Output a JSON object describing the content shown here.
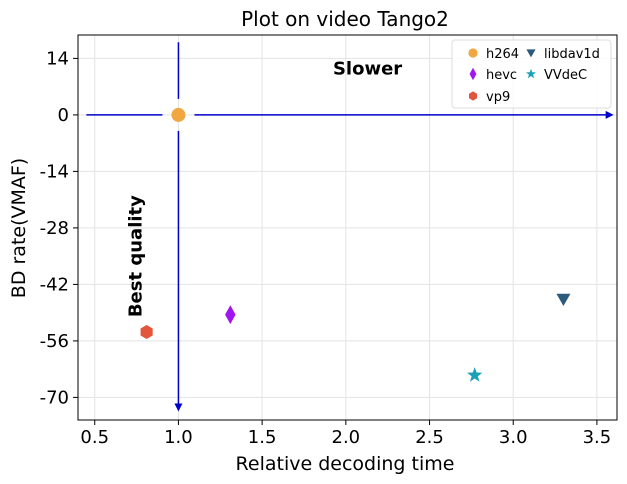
{
  "chart_data": {
    "type": "scatter",
    "title": "Plot on video Tango2",
    "xlabel": "Relative decoding time",
    "ylabel": "BD rate(VMAF)",
    "xlim": [
      0.4,
      3.62
    ],
    "ylim": [
      -75.6,
      19.8
    ],
    "xticks": [
      0.5,
      1.0,
      1.5,
      2.0,
      2.5,
      3.0,
      3.5
    ],
    "xtick_labels": [
      "0.5",
      "1.0",
      "1.5",
      "2.0",
      "2.5",
      "3.0",
      "3.5"
    ],
    "yticks": [
      14,
      0,
      -14,
      -28,
      -42,
      -56,
      -70
    ],
    "ytick_labels": [
      "14",
      "0",
      "-14",
      "-28",
      "-42",
      "-56",
      "-70"
    ],
    "grid": true,
    "legend_position": "top-right",
    "series": [
      {
        "name": "h264",
        "color": "#f0a742",
        "marker": "circle",
        "x": [
          1.0
        ],
        "y": [
          0.0
        ]
      },
      {
        "name": "hevc",
        "color": "#a116f0",
        "marker": "thin-diamond",
        "x": [
          1.31
        ],
        "y": [
          -49.5
        ]
      },
      {
        "name": "vp9",
        "color": "#e4553e",
        "marker": "hexagon",
        "x": [
          0.81
        ],
        "y": [
          -53.8
        ]
      },
      {
        "name": "libdav1d",
        "color": "#2d5b7e",
        "marker": "triangle-down",
        "x": [
          3.3
        ],
        "y": [
          -45.7
        ]
      },
      {
        "name": "VVdeC",
        "color": "#1aa1b8",
        "marker": "star",
        "x": [
          2.77
        ],
        "y": [
          -64.5
        ]
      }
    ],
    "reference_lines": {
      "color": "#0000cc",
      "x": 1.0,
      "y": 0.0
    },
    "annotations": [
      {
        "text": "Slower",
        "x": 2.13,
        "y": 10.0,
        "rotation": 0
      },
      {
        "text": "Best quality",
        "x": 0.78,
        "y": -35.0,
        "rotation": -90
      }
    ]
  }
}
